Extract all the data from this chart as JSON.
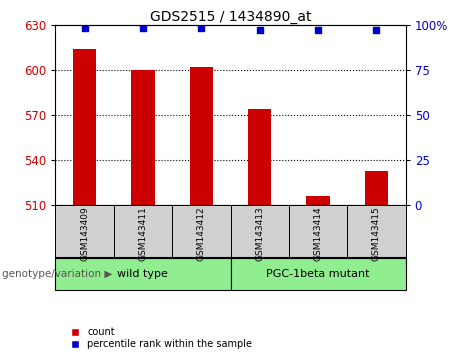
{
  "title": "GDS2515 / 1434890_at",
  "categories": [
    "GSM143409",
    "GSM143411",
    "GSM143412",
    "GSM143413",
    "GSM143414",
    "GSM143415"
  ],
  "bar_values": [
    614,
    600,
    602,
    574,
    516,
    533
  ],
  "percentile_values": [
    98,
    98,
    98,
    97,
    97,
    97
  ],
  "bar_color": "#cc0000",
  "percentile_color": "#0000cc",
  "ylim_left": [
    510,
    630
  ],
  "yticks_left": [
    510,
    540,
    570,
    600,
    630
  ],
  "ylim_right": [
    0,
    100
  ],
  "yticks_right": [
    0,
    25,
    50,
    75,
    100
  ],
  "group_labels": [
    "wild type",
    "PGC-1beta mutant"
  ],
  "group_ranges": [
    [
      0,
      2
    ],
    [
      3,
      5
    ]
  ],
  "group_color": "#90ee90",
  "group_header": "genotype/variation",
  "legend_items": [
    {
      "label": "count",
      "color": "#cc0000"
    },
    {
      "label": "percentile rank within the sample",
      "color": "#0000cc"
    }
  ],
  "tick_label_color_left": "#cc0000",
  "tick_label_color_right": "#0000cc",
  "plot_bg": "#ffffff",
  "gray_box_color": "#d0d0d0",
  "bar_width": 0.4
}
